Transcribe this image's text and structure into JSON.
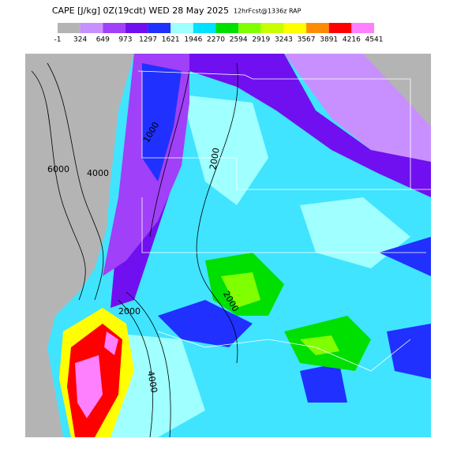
{
  "header": {
    "title": "CAPE [J/kg] 0Z(19cdt) WED 28 May 2025",
    "subtitle": "12hrFcst@1336z RAP"
  },
  "legend": {
    "colors": [
      "#b4b4b4",
      "#c890ff",
      "#a040f8",
      "#7010f0",
      "#2030ff",
      "#a0ffff",
      "#00e0ff",
      "#00e000",
      "#80ff00",
      "#c8ff00",
      "#ffff00",
      "#ff8c00",
      "#ff0000",
      "#ff80ff"
    ],
    "labels": [
      "-1",
      "324",
      "649",
      "973",
      "1297",
      "1621",
      "1946",
      "2270",
      "2594",
      "2919",
      "3243",
      "3567",
      "3891",
      "4216",
      "4541"
    ]
  },
  "contour_labels": [
    "6000",
    "4000",
    "1000",
    "2000",
    "2000",
    "2000",
    "4000"
  ]
}
